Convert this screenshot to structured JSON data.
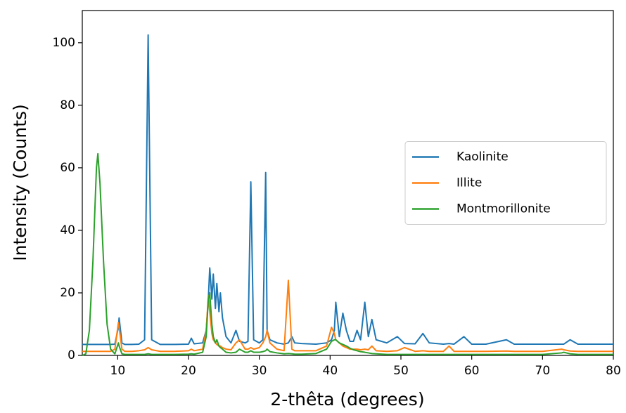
{
  "chart_data": {
    "type": "line",
    "xlabel": "2-thêta (degrees)",
    "ylabel": "Intensity (Counts)",
    "x": [
      5,
      5.5,
      6,
      6.5,
      7,
      7.2,
      7.5,
      8,
      8.5,
      9,
      9.6,
      10.1,
      10.2,
      10.6,
      11,
      12,
      13,
      13.8,
      14.3,
      14.8,
      16,
      18,
      20,
      20.4,
      20.8,
      22,
      22.5,
      22.8,
      23.0,
      23.3,
      23.5,
      23.8,
      24.0,
      24.3,
      24.5,
      24.8,
      25.3,
      26,
      26.7,
      27.2,
      28,
      28.4,
      28.8,
      29.2,
      30,
      30.5,
      30.9,
      31.1,
      31.5,
      32.5,
      33.5,
      34.1,
      34.6,
      35,
      36,
      38,
      39.5,
      40.2,
      40.6,
      40.8,
      41.3,
      41.8,
      42.3,
      42.8,
      43.3,
      43.8,
      44.3,
      44.9,
      45.4,
      45.9,
      46.5,
      48,
      49.5,
      50.5,
      52,
      53.1,
      54,
      56,
      56.8,
      57.5,
      58.9,
      60,
      62,
      64.9,
      66,
      70,
      72.7,
      73,
      73.9,
      75,
      78,
      80
    ],
    "series": [
      {
        "name": "Kaolinite",
        "color": "#1f77b4",
        "values": [
          3.5,
          3.5,
          3.5,
          3.5,
          3.5,
          3.5,
          3.5,
          3.5,
          3.5,
          3.5,
          3.6,
          9,
          12,
          4,
          3.5,
          3.5,
          3.6,
          5,
          102.5,
          5,
          3.5,
          3.5,
          3.6,
          5.5,
          3.7,
          4,
          8,
          18,
          28,
          18,
          26,
          15,
          23,
          14,
          20,
          12,
          6,
          4,
          8,
          4.5,
          4,
          4.5,
          55.5,
          5,
          4,
          5,
          58.5,
          8,
          5,
          4,
          3.6,
          4,
          6,
          4,
          3.8,
          3.6,
          4,
          5,
          8,
          17,
          6,
          13.5,
          8,
          4.5,
          4.5,
          8,
          5,
          17,
          6,
          11.5,
          5,
          4,
          6,
          3.8,
          3.7,
          7,
          4,
          3.6,
          3.8,
          3.6,
          6,
          3.6,
          3.6,
          5,
          3.6,
          3.6,
          3.6,
          3.6,
          5,
          3.6,
          3.6,
          3.6
        ]
      },
      {
        "name": "Illite",
        "color": "#ff7f0e",
        "values": [
          1.3,
          1.3,
          1.3,
          1.3,
          1.3,
          1.3,
          1.3,
          1.3,
          1.3,
          1.3,
          2,
          10.5,
          9,
          2,
          1.3,
          1.3,
          1.5,
          1.8,
          2.5,
          1.8,
          1.3,
          1.3,
          1.5,
          2,
          1.5,
          2,
          8,
          19,
          14,
          7,
          5,
          4,
          3.5,
          3,
          3,
          2.5,
          2,
          1.8,
          4,
          5,
          2,
          2,
          2.5,
          2,
          2.5,
          4,
          6,
          8,
          4,
          2,
          1.5,
          24,
          2,
          1.5,
          1.5,
          1.5,
          3,
          9,
          7,
          5,
          4,
          3,
          2.5,
          2,
          2,
          2,
          1.8,
          2,
          1.8,
          3,
          1.5,
          1.3,
          1.5,
          2.5,
          1.3,
          1.5,
          1.3,
          1.3,
          3,
          1.3,
          1.3,
          1.3,
          1.3,
          1.4,
          1.3,
          1.3,
          2,
          1.8,
          1.4,
          1.3,
          1.3,
          1.3
        ]
      },
      {
        "name": "Montmorillonite",
        "color": "#2ca02c",
        "values": [
          0,
          0.5,
          8,
          30,
          60,
          64.5,
          55,
          30,
          10,
          2,
          0.5,
          4,
          3,
          0.5,
          0.3,
          0.3,
          0.3,
          0.3,
          0.5,
          0.3,
          0.3,
          0.3,
          0.4,
          0.5,
          0.4,
          1,
          6,
          18,
          20,
          10,
          6,
          4,
          5,
          3,
          2.5,
          2,
          1,
          0.8,
          1,
          2,
          1,
          1,
          1.5,
          1,
          1,
          1.2,
          1.5,
          2,
          1.2,
          0.8,
          0.5,
          0.6,
          0.5,
          0.4,
          0.4,
          0.6,
          2,
          4.5,
          5,
          5,
          4,
          3.5,
          3,
          2.3,
          1.8,
          1.5,
          1.2,
          1,
          0.8,
          0.6,
          0.5,
          0.3,
          0.3,
          0.3,
          0.3,
          0.3,
          0.3,
          0.3,
          0.3,
          0.3,
          0.3,
          0.3,
          0.3,
          0.3,
          0.3,
          0.3,
          0.8,
          1,
          0.5,
          0.3,
          0.3,
          0.3
        ]
      }
    ],
    "xlim": [
      5,
      80
    ],
    "ylim": [
      0,
      110.3
    ],
    "xticks": [
      10,
      20,
      30,
      40,
      50,
      60,
      70,
      80
    ],
    "yticks": [
      0,
      20,
      40,
      60,
      80,
      100
    ],
    "grid": false,
    "legend": "center right"
  }
}
